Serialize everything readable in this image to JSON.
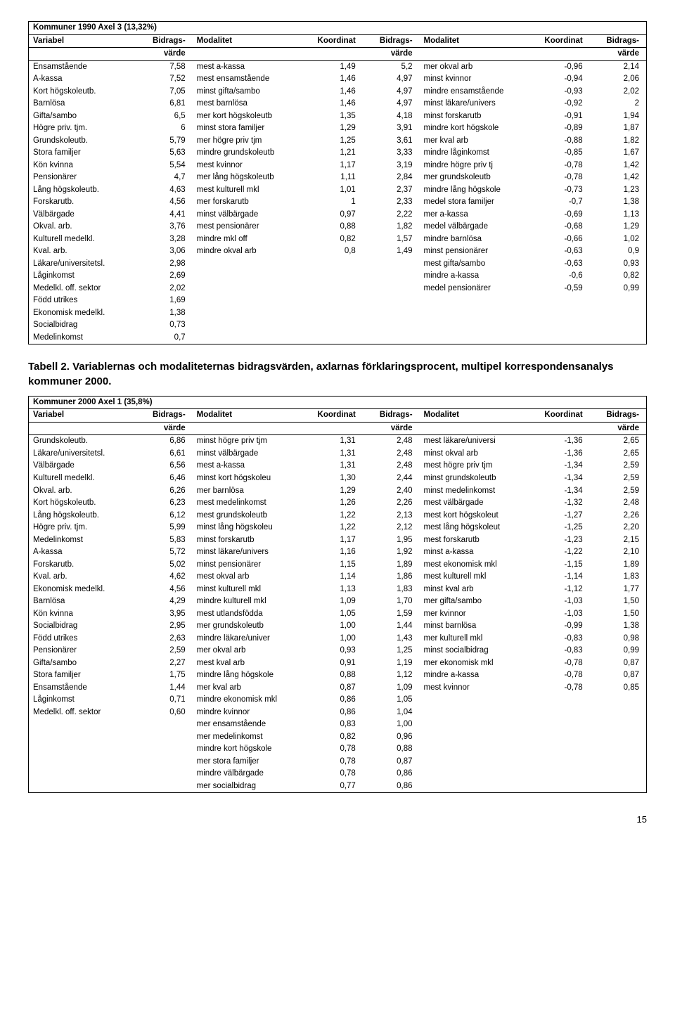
{
  "table1": {
    "title": "Kommuner 1990 Axel 3 (13,32%)",
    "headers": [
      "Variabel",
      "Bidrags-",
      "Modalitet",
      "Koordinat",
      "Bidrags-",
      "Modalitet",
      "Koordinat",
      "Bidrags-"
    ],
    "subheaders": [
      "",
      "värde",
      "",
      "",
      "värde",
      "",
      "",
      "värde"
    ],
    "rows": [
      [
        "Ensamstående",
        "7,58",
        "mest a-kassa",
        "1,49",
        "5,2",
        "mer okval arb",
        "-0,96",
        "2,14"
      ],
      [
        "A-kassa",
        "7,52",
        "mest ensamstående",
        "1,46",
        "4,97",
        "minst kvinnor",
        "-0,94",
        "2,06"
      ],
      [
        "Kort högskoleutb.",
        "7,05",
        "minst gifta/sambo",
        "1,46",
        "4,97",
        "mindre ensamstående",
        "-0,93",
        "2,02"
      ],
      [
        "Barnlösa",
        "6,81",
        "mest barnlösa",
        "1,46",
        "4,97",
        "minst läkare/univers",
        "-0,92",
        "2"
      ],
      [
        "Gifta/sambo",
        "6,5",
        "mer kort högskoleutb",
        "1,35",
        "4,18",
        "minst forskarutb",
        "-0,91",
        "1,94"
      ],
      [
        "Högre priv. tjm.",
        "6",
        "minst stora familjer",
        "1,29",
        "3,91",
        "mindre kort högskole",
        "-0,89",
        "1,87"
      ],
      [
        "Grundskoleutb.",
        "5,79",
        "mer högre priv tjm",
        "1,25",
        "3,61",
        "mer kval arb",
        "-0,88",
        "1,82"
      ],
      [
        "Stora familjer",
        "5,63",
        "mindre grundskoleutb",
        "1,21",
        "3,33",
        "mindre låginkomst",
        "-0,85",
        "1,67"
      ],
      [
        "Kön kvinna",
        "5,54",
        "mest kvinnor",
        "1,17",
        "3,19",
        "mindre högre priv tj",
        "-0,78",
        "1,42"
      ],
      [
        "Pensionärer",
        "4,7",
        "mer lång högskoleutb",
        "1,11",
        "2,84",
        "mer grundskoleutb",
        "-0,78",
        "1,42"
      ],
      [
        "Lång högskoleutb.",
        "4,63",
        "mest kulturell mkl",
        "1,01",
        "2,37",
        "mindre lång högskole",
        "-0,73",
        "1,23"
      ],
      [
        "Forskarutb.",
        "4,56",
        "mer forskarutb",
        "1",
        "2,33",
        "medel stora familjer",
        "-0,7",
        "1,38"
      ],
      [
        "Välbärgade",
        "4,41",
        "minst välbärgade",
        "0,97",
        "2,22",
        "mer a-kassa",
        "-0,69",
        "1,13"
      ],
      [
        "Okval. arb.",
        "3,76",
        "mest pensionärer",
        "0,88",
        "1,82",
        "medel välbärgade",
        "-0,68",
        "1,29"
      ],
      [
        "Kulturell medelkl.",
        "3,28",
        "mindre mkl off",
        "0,82",
        "1,57",
        "mindre barnlösa",
        "-0,66",
        "1,02"
      ],
      [
        "Kval. arb.",
        "3,06",
        "mindre okval arb",
        "0,8",
        "1,49",
        "minst pensionärer",
        "-0,63",
        "0,9"
      ],
      [
        "Läkare/universitetsl.",
        "2,98",
        "",
        "",
        "",
        "mest gifta/sambo",
        "-0,63",
        "0,93"
      ],
      [
        "Låginkomst",
        "2,69",
        "",
        "",
        "",
        "mindre a-kassa",
        "-0,6",
        "0,82"
      ],
      [
        "Medelkl. off. sektor",
        "2,02",
        "",
        "",
        "",
        "medel pensionärer",
        "-0,59",
        "0,99"
      ],
      [
        "Född utrikes",
        "1,69",
        "",
        "",
        "",
        "",
        "",
        ""
      ],
      [
        "Ekonomisk medelkl.",
        "1,38",
        "",
        "",
        "",
        "",
        "",
        ""
      ],
      [
        "Socialbidrag",
        "0,73",
        "",
        "",
        "",
        "",
        "",
        ""
      ],
      [
        "Medelinkomst",
        "0,7",
        "",
        "",
        "",
        "",
        "",
        ""
      ]
    ]
  },
  "caption": "Tabell 2. Variablernas och modaliteternas bidragsvärden, axlarnas förklaringsprocent, multipel korrespondensanalys kommuner 2000.",
  "table2": {
    "title": "Kommuner 2000 Axel 1 (35,8%)",
    "headers": [
      "Variabel",
      "Bidrags-",
      "Modalitet",
      "Koordinat",
      "Bidrags-",
      "Modalitet",
      "Koordinat",
      "Bidrags-"
    ],
    "subheaders": [
      "",
      "värde",
      "",
      "",
      "värde",
      "",
      "",
      "värde"
    ],
    "rows": [
      [
        "Grundskoleutb.",
        "6,86",
        "minst högre priv tjm",
        "1,31",
        "2,48",
        "mest läkare/universi",
        "-1,36",
        "2,65"
      ],
      [
        "Läkare/universitetsl.",
        "6,61",
        "minst välbärgade",
        "1,31",
        "2,48",
        "minst okval arb",
        "-1,36",
        "2,65"
      ],
      [
        "Välbärgade",
        "6,56",
        "mest a-kassa",
        "1,31",
        "2,48",
        "mest högre priv tjm",
        "-1,34",
        "2,59"
      ],
      [
        "Kulturell medelkl.",
        "6,46",
        "minst kort högskoleu",
        "1,30",
        "2,44",
        "minst grundskoleutb",
        "-1,34",
        "2,59"
      ],
      [
        "Okval. arb.",
        "6,26",
        "mer barnlösa",
        "1,29",
        "2,40",
        "minst medelinkomst",
        "-1,34",
        "2,59"
      ],
      [
        "Kort högskoleutb.",
        "6,23",
        "mest medelinkomst",
        "1,26",
        "2,26",
        "mest välbärgade",
        "-1,32",
        "2,48"
      ],
      [
        "Lång högskoleutb.",
        "6,12",
        "mest grundskoleutb",
        "1,22",
        "2,13",
        "mest kort högskoleut",
        "-1,27",
        "2,26"
      ],
      [
        "Högre priv. tjm.",
        "5,99",
        "minst lång högskoleu",
        "1,22",
        "2,12",
        "mest lång högskoleut",
        "-1,25",
        "2,20"
      ],
      [
        "Medelinkomst",
        "5,83",
        "minst forskarutb",
        "1,17",
        "1,95",
        "mest forskarutb",
        "-1,23",
        "2,15"
      ],
      [
        "A-kassa",
        "5,72",
        "minst läkare/univers",
        "1,16",
        "1,92",
        "minst a-kassa",
        "-1,22",
        "2,10"
      ],
      [
        "Forskarutb.",
        "5,02",
        "minst pensionärer",
        "1,15",
        "1,89",
        "mest ekonomisk mkl",
        "-1,15",
        "1,89"
      ],
      [
        "Kval. arb.",
        "4,62",
        "mest okval arb",
        "1,14",
        "1,86",
        "mest kulturell mkl",
        "-1,14",
        "1,83"
      ],
      [
        "Ekonomisk medelkl.",
        "4,56",
        "minst kulturell mkl",
        "1,13",
        "1,83",
        "minst kval arb",
        "-1,12",
        "1,77"
      ],
      [
        "Barnlösa",
        "4,29",
        "mindre kulturell mkl",
        "1,09",
        "1,70",
        "mer gifta/sambo",
        "-1,03",
        "1,50"
      ],
      [
        "Kön kvinna",
        "3,95",
        "mest utlandsfödda",
        "1,05",
        "1,59",
        "mer kvinnor",
        "-1,03",
        "1,50"
      ],
      [
        "Socialbidrag",
        "2,95",
        "mer grundskoleutb",
        "1,00",
        "1,44",
        "minst barnlösa",
        "-0,99",
        "1,38"
      ],
      [
        "Född utrikes",
        "2,63",
        "mindre läkare/univer",
        "1,00",
        "1,43",
        "mer kulturell mkl",
        "-0,83",
        "0,98"
      ],
      [
        "Pensionärer",
        "2,59",
        "mer okval arb",
        "0,93",
        "1,25",
        "minst socialbidrag",
        "-0,83",
        "0,99"
      ],
      [
        "Gifta/sambo",
        "2,27",
        "mest kval arb",
        "0,91",
        "1,19",
        "mer ekonomisk mkl",
        "-0,78",
        "0,87"
      ],
      [
        "Stora familjer",
        "1,75",
        "mindre lång högskole",
        "0,88",
        "1,12",
        "mindre a-kassa",
        "-0,78",
        "0,87"
      ],
      [
        "Ensamstående",
        "1,44",
        "mer kval arb",
        "0,87",
        "1,09",
        "mest kvinnor",
        "-0,78",
        "0,85"
      ],
      [
        "Låginkomst",
        "0,71",
        "mindre ekonomisk mkl",
        "0,86",
        "1,05",
        "",
        "",
        ""
      ],
      [
        "Medelkl. off. sektor",
        "0,60",
        "mindre kvinnor",
        "0,86",
        "1,04",
        "",
        "",
        ""
      ],
      [
        "",
        "",
        "mer ensamstående",
        "0,83",
        "1,00",
        "",
        "",
        ""
      ],
      [
        "",
        "",
        "mer medelinkomst",
        "0,82",
        "0,96",
        "",
        "",
        ""
      ],
      [
        "",
        "",
        "mindre kort högskole",
        "0,78",
        "0,88",
        "",
        "",
        ""
      ],
      [
        "",
        "",
        "mer stora familjer",
        "0,78",
        "0,87",
        "",
        "",
        ""
      ],
      [
        "",
        "",
        "mindre välbärgade",
        "0,78",
        "0,86",
        "",
        "",
        ""
      ],
      [
        "",
        "",
        "mer socialbidrag",
        "0,77",
        "0,86",
        "",
        "",
        ""
      ]
    ]
  },
  "pagenum": "15",
  "colwidths": [
    "18%",
    "8%",
    "18%",
    "9%",
    "9%",
    "18%",
    "9%",
    "9%"
  ]
}
